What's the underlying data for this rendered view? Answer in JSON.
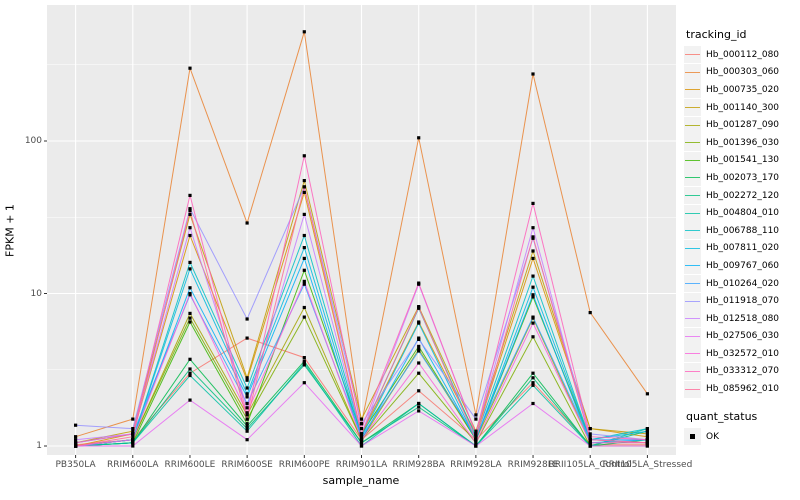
{
  "figure": {
    "background": "#FFFFFF",
    "panel_background": "#EBEBEB",
    "grid_color": "#FFFFFF",
    "tick_label_color": "#4D4D4D",
    "tick_mark_color": "#333333",
    "point_color": "#000000"
  },
  "chart_data": {
    "type": "line",
    "title": "",
    "xlabel": "sample_name",
    "ylabel": "FPKM + 1",
    "y_scale": "log10",
    "y_ticks": [
      1,
      10,
      100
    ],
    "ylim": [
      0.97,
      780
    ],
    "grid": "on",
    "legend_position": "right",
    "categories": [
      "PB350LA",
      "RRIM600LA",
      "RRIM600LE",
      "RRIM600SE",
      "RRIM600PE",
      "RRIM901LA",
      "RRIM928BA",
      "RRIM928LA",
      "RRIM928LE",
      "RRII105LA_Control",
      "RRII105LA_Stressed"
    ],
    "series": [
      {
        "name": "Hb_000112_080",
        "color": "#F8766D",
        "values": [
          1.02,
          1.1,
          3.0,
          5.1,
          3.8,
          1.1,
          2.3,
          1.1,
          2.6,
          1.02,
          1.02
        ]
      },
      {
        "name": "Hb_000303_060",
        "color": "#EA8331",
        "values": [
          1.15,
          1.5,
          300,
          29,
          520,
          1.4,
          105,
          1.6,
          275,
          7.5,
          2.2
        ]
      },
      {
        "name": "Hb_000735_020",
        "color": "#D89000",
        "values": [
          1.0,
          1.2,
          24,
          2.7,
          46,
          1.2,
          6.5,
          1.2,
          17,
          1.3,
          1.15
        ]
      },
      {
        "name": "Hb_001140_300",
        "color": "#C09B00",
        "values": [
          1.05,
          1.25,
          33,
          2.8,
          55,
          1.5,
          8.2,
          1.25,
          19,
          1.3,
          1.2
        ]
      },
      {
        "name": "Hb_001287_090",
        "color": "#A3A500",
        "values": [
          1.0,
          1.1,
          7.4,
          1.6,
          8.1,
          1.1,
          4.3,
          1.1,
          6.9,
          1.05,
          1.05
        ]
      },
      {
        "name": "Hb_001396_030",
        "color": "#7CAE00",
        "values": [
          1.0,
          1.1,
          6.9,
          1.5,
          7.0,
          1.1,
          3.0,
          1.05,
          5.2,
          1.0,
          1.0
        ]
      },
      {
        "name": "Hb_001541_130",
        "color": "#39B600",
        "values": [
          1.0,
          1.05,
          6.5,
          1.4,
          14.2,
          1.2,
          4.5,
          1.1,
          9.5,
          1.1,
          1.05
        ]
      },
      {
        "name": "Hb_002073_170",
        "color": "#00BB4E",
        "values": [
          1.0,
          1.05,
          3.7,
          1.35,
          3.6,
          1.05,
          1.9,
          1.0,
          3.0,
          1.0,
          1.1
        ]
      },
      {
        "name": "Hb_002272_120",
        "color": "#00BF7D",
        "values": [
          1.0,
          1.05,
          3.2,
          1.3,
          3.4,
          1.05,
          1.8,
          1.0,
          2.8,
          1.0,
          1.25
        ]
      },
      {
        "name": "Hb_004804_010",
        "color": "#00C1A3",
        "values": [
          1.0,
          1.05,
          2.9,
          1.25,
          3.5,
          1.0,
          1.9,
          1.0,
          2.5,
          1.0,
          1.3
        ]
      },
      {
        "name": "Hb_006788_110",
        "color": "#00BFC4",
        "values": [
          1.0,
          1.1,
          16,
          2.4,
          24,
          1.2,
          8.0,
          1.15,
          13,
          1.1,
          1.3
        ]
      },
      {
        "name": "Hb_007811_020",
        "color": "#00BAE0",
        "values": [
          1.0,
          1.1,
          14.5,
          2.2,
          20,
          1.15,
          6.4,
          1.1,
          11,
          1.1,
          1.25
        ]
      },
      {
        "name": "Hb_009767_060",
        "color": "#00B0F6",
        "values": [
          1.0,
          1.1,
          10.9,
          2.1,
          17,
          1.1,
          5.1,
          1.1,
          9.8,
          1.05,
          1.1
        ]
      },
      {
        "name": "Hb_010264_020",
        "color": "#35A2FF",
        "values": [
          1.05,
          1.2,
          9.8,
          1.9,
          11.5,
          1.15,
          4.2,
          1.15,
          7.0,
          1.1,
          1.1
        ]
      },
      {
        "name": "Hb_011918_070",
        "color": "#9590FF",
        "values": [
          1.37,
          1.3,
          36,
          6.8,
          50,
          1.4,
          5.0,
          1.5,
          23,
          1.2,
          1.1
        ]
      },
      {
        "name": "Hb_012518_080",
        "color": "#C77CFF",
        "values": [
          1.1,
          1.2,
          27,
          1.78,
          33,
          1.2,
          11.5,
          1.2,
          27,
          1.1,
          1.05
        ]
      },
      {
        "name": "Hb_027506_030",
        "color": "#E76BF3",
        "values": [
          1.0,
          1.0,
          2.0,
          1.1,
          2.6,
          1.0,
          1.7,
          1.0,
          1.9,
          1.0,
          1.0
        ]
      },
      {
        "name": "Hb_032572_010",
        "color": "#FA62DB",
        "values": [
          1.0,
          1.1,
          10,
          1.65,
          12,
          1.1,
          3.5,
          1.05,
          6.4,
          1.05,
          1.05
        ]
      },
      {
        "name": "Hb_033312_070",
        "color": "#FF62BC",
        "values": [
          1.05,
          1.2,
          44,
          1.6,
          80,
          1.3,
          11.7,
          1.2,
          39,
          1.15,
          1.1
        ]
      },
      {
        "name": "Hb_085962_010",
        "color": "#FF6A98",
        "values": [
          1.0,
          1.15,
          35,
          1.5,
          50,
          1.2,
          8.1,
          1.1,
          23.5,
          1.1,
          1.05
        ]
      }
    ],
    "legend": {
      "color_title": "tracking_id",
      "shape_title": "quant_status",
      "shape_entries": [
        {
          "label": "OK",
          "marker": "black-square"
        }
      ]
    }
  }
}
